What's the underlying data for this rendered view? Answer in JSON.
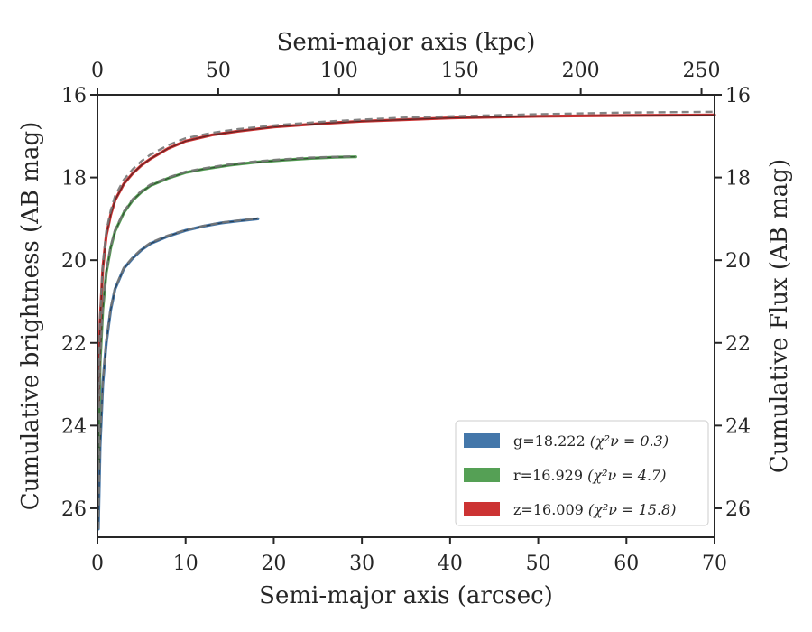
{
  "chart_data": {
    "type": "line",
    "xlabel": "Semi-major axis (arcsec)",
    "ylabel": "Cumulative brightness (AB mag)",
    "x2label": "Semi-major axis (kpc)",
    "y2label": "Cumulative Flux (AB mag)",
    "xlim": [
      0,
      70
    ],
    "ylim": [
      26.7,
      16
    ],
    "x2lim": [
      0,
      255.4
    ],
    "xticks": [
      0,
      10,
      20,
      30,
      40,
      50,
      60,
      70
    ],
    "yticks": [
      16,
      18,
      20,
      22,
      24,
      26
    ],
    "x2ticks": [
      0,
      50,
      100,
      150,
      200,
      250
    ],
    "y_inverted": true,
    "legend_position": "lower-right",
    "series": [
      {
        "name": "g=18.222",
        "chi_label": "(χ²ν = 0.3)",
        "color": "#4477aa",
        "style": "solid",
        "x": [
          0.1,
          0.3,
          0.6,
          1,
          1.5,
          2,
          3,
          4,
          5,
          6,
          8,
          10,
          12,
          14,
          16,
          18.2
        ],
        "y": [
          26.5,
          24.5,
          23.0,
          22.0,
          21.2,
          20.7,
          20.2,
          19.95,
          19.75,
          19.6,
          19.42,
          19.28,
          19.18,
          19.1,
          19.05,
          19.0
        ]
      },
      {
        "name": "r=16.929",
        "chi_label": "(χ²ν = 4.7)",
        "color": "#55a055",
        "style": "solid",
        "x": [
          0.1,
          0.3,
          0.6,
          1,
          1.5,
          2,
          3,
          4,
          5,
          6,
          8,
          10,
          12,
          15,
          18,
          21,
          24,
          27,
          29.3
        ],
        "y": [
          25.0,
          22.5,
          21.2,
          20.3,
          19.7,
          19.3,
          18.85,
          18.55,
          18.35,
          18.2,
          18.02,
          17.88,
          17.8,
          17.7,
          17.63,
          17.58,
          17.54,
          17.51,
          17.5
        ]
      },
      {
        "name": "z=16.009",
        "chi_label": "(χ²ν = 15.8)",
        "color": "#cc3333",
        "style": "solid",
        "x": [
          0.1,
          0.3,
          0.6,
          1,
          1.5,
          2,
          3,
          4,
          5,
          6,
          8,
          10,
          13,
          16,
          20,
          25,
          30,
          35,
          40,
          50,
          60,
          70
        ],
        "y": [
          23.5,
          21.5,
          20.2,
          19.4,
          18.9,
          18.55,
          18.15,
          17.9,
          17.7,
          17.55,
          17.3,
          17.12,
          16.97,
          16.88,
          16.78,
          16.7,
          16.64,
          16.6,
          16.56,
          16.52,
          16.5,
          16.49
        ]
      }
    ],
    "fit_lines": [
      {
        "for": "g",
        "color": "#777777",
        "style": "dashed",
        "x": [
          0.1,
          0.3,
          0.6,
          1,
          1.5,
          2,
          3,
          4,
          5,
          6,
          8,
          10,
          12,
          14,
          16,
          18.2
        ],
        "y": [
          26.5,
          24.4,
          22.95,
          21.95,
          21.15,
          20.68,
          20.18,
          19.93,
          19.73,
          19.58,
          19.4,
          19.27,
          19.17,
          19.09,
          19.04,
          18.99
        ]
      },
      {
        "for": "r",
        "color": "#777777",
        "style": "dashed",
        "x": [
          0.1,
          0.3,
          0.6,
          1,
          1.5,
          2,
          3,
          4,
          5,
          6,
          8,
          10,
          12,
          15,
          18,
          21,
          24,
          27,
          29.3
        ],
        "y": [
          25.0,
          22.45,
          21.15,
          20.25,
          19.66,
          19.27,
          18.82,
          18.52,
          18.32,
          18.17,
          18.0,
          17.86,
          17.78,
          17.68,
          17.61,
          17.56,
          17.52,
          17.5,
          17.49
        ]
      },
      {
        "for": "z",
        "color": "#777777",
        "style": "dashed",
        "x": [
          0.1,
          0.3,
          0.6,
          1,
          1.5,
          2,
          3,
          4,
          5,
          6,
          8,
          10,
          13,
          16,
          20,
          25,
          30,
          35,
          40,
          50,
          60,
          70
        ],
        "y": [
          23.4,
          21.4,
          20.1,
          19.3,
          18.8,
          18.45,
          18.05,
          17.8,
          17.6,
          17.45,
          17.22,
          17.05,
          16.92,
          16.83,
          16.74,
          16.66,
          16.6,
          16.55,
          16.52,
          16.47,
          16.43,
          16.41
        ]
      }
    ]
  }
}
